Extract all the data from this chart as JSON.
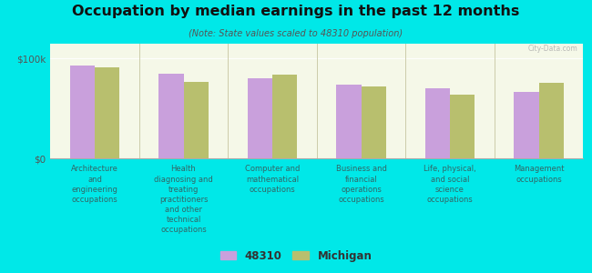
{
  "title": "Occupation by median earnings in the past 12 months",
  "subtitle": "(Note: State values scaled to 48310 population)",
  "background_color": "#00e8e8",
  "plot_bg_top": "#f5f8e8",
  "plot_bg_bottom": "#e8eed8",
  "categories": [
    "Architecture\nand\nengineering\noccupations",
    "Health\ndiagnosing and\ntreating\npractitioners\nand other\ntechnical\noccupations",
    "Computer and\nmathematical\noccupations",
    "Business and\nfinancial\noperations\noccupations",
    "Life, physical,\nand social\nscience\noccupations",
    "Management\noccupations"
  ],
  "values_48310": [
    93000,
    85000,
    80000,
    74000,
    70000,
    67000
  ],
  "values_michigan": [
    91000,
    77000,
    84000,
    72000,
    64000,
    76000
  ],
  "color_48310": "#c9a0dc",
  "color_michigan": "#b8bf6e",
  "ytick_label_100k": "$100k",
  "ytick_label_0": "$0",
  "ylim": [
    0,
    115000
  ],
  "yticks": [
    0,
    100000
  ],
  "legend_48310": "48310",
  "legend_michigan": "Michigan",
  "bar_width": 0.28,
  "watermark": "City-Data.com"
}
